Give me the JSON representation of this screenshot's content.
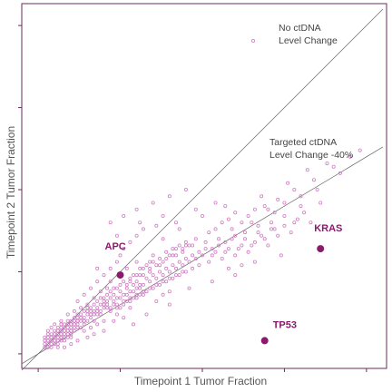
{
  "chart_data": {
    "type": "scatter",
    "xlabel": "Timepoint 1 Tumor Fraction",
    "ylabel": "Timepoint 2 Tumor Fraction",
    "xlim": [
      0,
      1
    ],
    "ylim": [
      0,
      1
    ],
    "tick_labels_shown": false,
    "colors": {
      "frame": "#6b2a5e",
      "points": "#d07fc4",
      "highlight": "#8a1a6b",
      "reference_lines": "#666666"
    },
    "reference_lines": [
      {
        "label_lines": [
          "No ctDNA",
          "Level Change"
        ],
        "slope": 1.0
      },
      {
        "label_lines": [
          "Targeted ctDNA",
          "Level Change -40%"
        ],
        "slope": 0.6
      }
    ],
    "highlighted_points": [
      {
        "label": "APC",
        "x": 0.25,
        "y": 0.24
      },
      {
        "label": "KRAS",
        "x": 0.86,
        "y": 0.32
      },
      {
        "label": "TP53",
        "x": 0.69,
        "y": 0.04
      }
    ],
    "scatter_points": [
      [
        0.02,
        0.03
      ],
      [
        0.03,
        0.02
      ],
      [
        0.04,
        0.05
      ],
      [
        0.05,
        0.03
      ],
      [
        0.06,
        0.06
      ],
      [
        0.07,
        0.04
      ],
      [
        0.03,
        0.06
      ],
      [
        0.05,
        0.07
      ],
      [
        0.08,
        0.06
      ],
      [
        0.09,
        0.07
      ],
      [
        0.04,
        0.02
      ],
      [
        0.06,
        0.03
      ],
      [
        0.07,
        0.08
      ],
      [
        0.08,
        0.05
      ],
      [
        0.1,
        0.08
      ],
      [
        0.11,
        0.07
      ],
      [
        0.09,
        0.1
      ],
      [
        0.12,
        0.09
      ],
      [
        0.13,
        0.08
      ],
      [
        0.1,
        0.05
      ],
      [
        0.14,
        0.11
      ],
      [
        0.15,
        0.1
      ],
      [
        0.12,
        0.12
      ],
      [
        0.16,
        0.12
      ],
      [
        0.17,
        0.1
      ],
      [
        0.13,
        0.14
      ],
      [
        0.18,
        0.13
      ],
      [
        0.19,
        0.12
      ],
      [
        0.15,
        0.15
      ],
      [
        0.2,
        0.14
      ],
      [
        0.11,
        0.13
      ],
      [
        0.14,
        0.07
      ],
      [
        0.16,
        0.08
      ],
      [
        0.18,
        0.09
      ],
      [
        0.2,
        0.1
      ],
      [
        0.21,
        0.16
      ],
      [
        0.22,
        0.13
      ],
      [
        0.17,
        0.17
      ],
      [
        0.23,
        0.15
      ],
      [
        0.24,
        0.17
      ],
      [
        0.19,
        0.19
      ],
      [
        0.25,
        0.14
      ],
      [
        0.26,
        0.18
      ],
      [
        0.21,
        0.2
      ],
      [
        0.27,
        0.16
      ],
      [
        0.28,
        0.19
      ],
      [
        0.22,
        0.22
      ],
      [
        0.29,
        0.17
      ],
      [
        0.3,
        0.2
      ],
      [
        0.24,
        0.12
      ],
      [
        0.26,
        0.11
      ],
      [
        0.28,
        0.14
      ],
      [
        0.31,
        0.18
      ],
      [
        0.32,
        0.21
      ],
      [
        0.33,
        0.19
      ],
      [
        0.34,
        0.22
      ],
      [
        0.35,
        0.2
      ],
      [
        0.3,
        0.24
      ],
      [
        0.36,
        0.23
      ],
      [
        0.37,
        0.21
      ],
      [
        0.38,
        0.24
      ],
      [
        0.39,
        0.22
      ],
      [
        0.4,
        0.25
      ],
      [
        0.32,
        0.26
      ],
      [
        0.41,
        0.23
      ],
      [
        0.42,
        0.26
      ],
      [
        0.34,
        0.28
      ],
      [
        0.43,
        0.24
      ],
      [
        0.44,
        0.27
      ],
      [
        0.45,
        0.25
      ],
      [
        0.36,
        0.16
      ],
      [
        0.38,
        0.18
      ],
      [
        0.4,
        0.19
      ],
      [
        0.46,
        0.28
      ],
      [
        0.47,
        0.26
      ],
      [
        0.48,
        0.29
      ],
      [
        0.49,
        0.27
      ],
      [
        0.5,
        0.3
      ],
      [
        0.52,
        0.28
      ],
      [
        0.54,
        0.31
      ],
      [
        0.56,
        0.29
      ],
      [
        0.58,
        0.32
      ],
      [
        0.6,
        0.3
      ],
      [
        0.62,
        0.33
      ],
      [
        0.64,
        0.31
      ],
      [
        0.66,
        0.34
      ],
      [
        0.68,
        0.36
      ],
      [
        0.7,
        0.33
      ],
      [
        0.55,
        0.35
      ],
      [
        0.6,
        0.36
      ],
      [
        0.45,
        0.33
      ],
      [
        0.48,
        0.35
      ],
      [
        0.42,
        0.32
      ],
      [
        0.52,
        0.37
      ],
      [
        0.65,
        0.4
      ],
      [
        0.72,
        0.38
      ],
      [
        0.75,
        0.42
      ],
      [
        0.78,
        0.4
      ],
      [
        0.58,
        0.26
      ],
      [
        0.62,
        0.27
      ],
      [
        0.35,
        0.3
      ],
      [
        0.3,
        0.28
      ],
      [
        0.27,
        0.26
      ],
      [
        0.25,
        0.3
      ],
      [
        0.38,
        0.35
      ],
      [
        0.43,
        0.38
      ],
      [
        0.5,
        0.42
      ],
      [
        0.57,
        0.45
      ],
      [
        0.68,
        0.48
      ],
      [
        0.76,
        0.52
      ],
      [
        0.82,
        0.56
      ],
      [
        0.88,
        0.58
      ],
      [
        0.95,
        0.6
      ],
      [
        0.98,
        0.62
      ],
      [
        0.74,
        0.3
      ],
      [
        0.8,
        0.45
      ],
      [
        0.85,
        0.5
      ],
      [
        0.92,
        0.55
      ],
      [
        0.33,
        0.12
      ],
      [
        0.29,
        0.09
      ],
      [
        0.4,
        0.15
      ],
      [
        0.46,
        0.2
      ],
      [
        0.53,
        0.22
      ],
      [
        0.6,
        0.24
      ],
      [
        0.66,
        0.28
      ],
      [
        0.23,
        0.1
      ],
      [
        0.2,
        0.07
      ],
      [
        0.17,
        0.06
      ],
      [
        0.15,
        0.05
      ],
      [
        0.12,
        0.04
      ],
      [
        0.1,
        0.03
      ],
      [
        0.08,
        0.02
      ],
      [
        0.06,
        0.02
      ],
      [
        0.09,
        0.12
      ],
      [
        0.12,
        0.16
      ],
      [
        0.14,
        0.18
      ],
      [
        0.16,
        0.2
      ],
      [
        0.18,
        0.22
      ],
      [
        0.2,
        0.24
      ],
      [
        0.22,
        0.26
      ],
      [
        0.24,
        0.28
      ],
      [
        0.26,
        0.32
      ],
      [
        0.28,
        0.34
      ],
      [
        0.3,
        0.36
      ],
      [
        0.32,
        0.38
      ],
      [
        0.22,
        0.4
      ],
      [
        0.26,
        0.42
      ],
      [
        0.3,
        0.44
      ],
      [
        0.35,
        0.46
      ],
      [
        0.4,
        0.48
      ],
      [
        0.45,
        0.5
      ],
      [
        0.38,
        0.42
      ],
      [
        0.62,
        0.4
      ],
      [
        0.7,
        0.44
      ],
      [
        0.73,
        0.47
      ],
      [
        0.78,
        0.5
      ],
      [
        0.84,
        0.53
      ],
      [
        0.9,
        0.57
      ],
      [
        0.18,
        0.26
      ],
      [
        0.24,
        0.36
      ],
      [
        0.31,
        0.4
      ],
      [
        0.36,
        0.39
      ],
      [
        0.42,
        0.4
      ],
      [
        0.48,
        0.44
      ],
      [
        0.54,
        0.46
      ],
      [
        0.28,
        0.22
      ],
      [
        0.31,
        0.24
      ],
      [
        0.34,
        0.25
      ],
      [
        0.37,
        0.27
      ],
      [
        0.39,
        0.29
      ],
      [
        0.41,
        0.3
      ],
      [
        0.44,
        0.31
      ],
      [
        0.47,
        0.33
      ],
      [
        0.51,
        0.34
      ],
      [
        0.53,
        0.32
      ],
      [
        0.57,
        0.34
      ],
      [
        0.59,
        0.38
      ],
      [
        0.63,
        0.37
      ],
      [
        0.67,
        0.39
      ],
      [
        0.71,
        0.4
      ],
      [
        0.07,
        0.1
      ],
      [
        0.05,
        0.09
      ],
      [
        0.04,
        0.08
      ],
      [
        0.03,
        0.04
      ],
      [
        0.02,
        0.05
      ],
      [
        0.02,
        0.02
      ],
      [
        0.03,
        0.03
      ],
      [
        0.04,
        0.04
      ],
      [
        0.05,
        0.05
      ],
      [
        0.06,
        0.04
      ],
      [
        0.07,
        0.06
      ],
      [
        0.08,
        0.08
      ],
      [
        0.09,
        0.05
      ],
      [
        0.1,
        0.1
      ],
      [
        0.11,
        0.09
      ],
      [
        0.12,
        0.11
      ],
      [
        0.13,
        0.1
      ],
      [
        0.14,
        0.13
      ],
      [
        0.15,
        0.12
      ],
      [
        0.16,
        0.14
      ],
      [
        0.17,
        0.13
      ],
      [
        0.18,
        0.16
      ],
      [
        0.19,
        0.15
      ],
      [
        0.2,
        0.17
      ],
      [
        0.21,
        0.18
      ],
      [
        0.22,
        0.19
      ],
      [
        0.23,
        0.18
      ],
      [
        0.24,
        0.2
      ],
      [
        0.25,
        0.21
      ],
      [
        0.26,
        0.22
      ],
      [
        0.27,
        0.21
      ],
      [
        0.28,
        0.23
      ],
      [
        0.29,
        0.24
      ],
      [
        0.3,
        0.22
      ],
      [
        0.31,
        0.26
      ],
      [
        0.32,
        0.24
      ],
      [
        0.33,
        0.27
      ],
      [
        0.34,
        0.26
      ],
      [
        0.35,
        0.28
      ],
      [
        0.36,
        0.27
      ],
      [
        0.37,
        0.29
      ],
      [
        0.38,
        0.28
      ],
      [
        0.39,
        0.31
      ],
      [
        0.4,
        0.3
      ],
      [
        0.41,
        0.32
      ],
      [
        0.42,
        0.3
      ],
      [
        0.43,
        0.33
      ],
      [
        0.44,
        0.32
      ],
      [
        0.45,
        0.34
      ],
      [
        0.46,
        0.33
      ],
      [
        0.06,
        0.08
      ],
      [
        0.07,
        0.07
      ],
      [
        0.08,
        0.09
      ],
      [
        0.09,
        0.08
      ],
      [
        0.1,
        0.09
      ],
      [
        0.11,
        0.11
      ],
      [
        0.12,
        0.1
      ],
      [
        0.13,
        0.12
      ],
      [
        0.14,
        0.09
      ],
      [
        0.15,
        0.13
      ],
      [
        0.16,
        0.11
      ],
      [
        0.17,
        0.15
      ],
      [
        0.18,
        0.12
      ],
      [
        0.19,
        0.17
      ],
      [
        0.2,
        0.15
      ],
      [
        0.21,
        0.14
      ],
      [
        0.22,
        0.17
      ],
      [
        0.23,
        0.2
      ],
      [
        0.24,
        0.15
      ],
      [
        0.25,
        0.19
      ],
      [
        0.26,
        0.16
      ],
      [
        0.27,
        0.2
      ],
      [
        0.28,
        0.17
      ],
      [
        0.29,
        0.21
      ],
      [
        0.3,
        0.18
      ],
      [
        0.31,
        0.21
      ],
      [
        0.32,
        0.19
      ],
      [
        0.33,
        0.23
      ],
      [
        0.34,
        0.2
      ],
      [
        0.35,
        0.24
      ],
      [
        0.36,
        0.21
      ],
      [
        0.37,
        0.25
      ],
      [
        0.38,
        0.22
      ],
      [
        0.39,
        0.26
      ],
      [
        0.4,
        0.23
      ],
      [
        0.41,
        0.27
      ],
      [
        0.42,
        0.24
      ],
      [
        0.43,
        0.28
      ],
      [
        0.44,
        0.25
      ],
      [
        0.45,
        0.29
      ],
      [
        0.47,
        0.3
      ],
      [
        0.49,
        0.31
      ],
      [
        0.51,
        0.32
      ],
      [
        0.53,
        0.3
      ],
      [
        0.55,
        0.33
      ],
      [
        0.57,
        0.31
      ],
      [
        0.59,
        0.35
      ],
      [
        0.61,
        0.32
      ],
      [
        0.63,
        0.35
      ],
      [
        0.65,
        0.33
      ],
      [
        0.67,
        0.37
      ],
      [
        0.69,
        0.35
      ],
      [
        0.71,
        0.38
      ],
      [
        0.73,
        0.36
      ],
      [
        0.75,
        0.39
      ],
      [
        0.77,
        0.37
      ],
      [
        0.79,
        0.41
      ],
      [
        0.81,
        0.43
      ],
      [
        0.83,
        0.4
      ],
      [
        0.86,
        0.46
      ],
      [
        0.54,
        0.38
      ],
      [
        0.56,
        0.4
      ],
      [
        0.58,
        0.41
      ],
      [
        0.6,
        0.43
      ],
      [
        0.64,
        0.42
      ],
      [
        0.66,
        0.44
      ],
      [
        0.69,
        0.45
      ],
      [
        0.72,
        0.43
      ],
      [
        0.75,
        0.46
      ],
      [
        0.8,
        0.48
      ],
      [
        0.03,
        0.05
      ],
      [
        0.05,
        0.04
      ],
      [
        0.04,
        0.06
      ],
      [
        0.06,
        0.05
      ],
      [
        0.07,
        0.09
      ],
      [
        0.08,
        0.07
      ],
      [
        0.09,
        0.09
      ],
      [
        0.1,
        0.07
      ],
      [
        0.11,
        0.1
      ],
      [
        0.12,
        0.08
      ],
      [
        0.13,
        0.11
      ],
      [
        0.14,
        0.1
      ],
      [
        0.15,
        0.14
      ],
      [
        0.16,
        0.13
      ],
      [
        0.17,
        0.12
      ],
      [
        0.18,
        0.14
      ],
      [
        0.19,
        0.13
      ],
      [
        0.2,
        0.16
      ],
      [
        0.21,
        0.15
      ],
      [
        0.22,
        0.14
      ],
      [
        0.23,
        0.16
      ],
      [
        0.24,
        0.14
      ],
      [
        0.25,
        0.17
      ],
      [
        0.26,
        0.15
      ],
      [
        0.27,
        0.18
      ],
      [
        0.28,
        0.16
      ],
      [
        0.29,
        0.19
      ],
      [
        0.3,
        0.17
      ],
      [
        0.31,
        0.2
      ],
      [
        0.32,
        0.18
      ],
      [
        0.02,
        0.04
      ],
      [
        0.03,
        0.07
      ],
      [
        0.04,
        0.03
      ],
      [
        0.05,
        0.06
      ],
      [
        0.06,
        0.07
      ],
      [
        0.07,
        0.05
      ],
      [
        0.08,
        0.04
      ],
      [
        0.09,
        0.06
      ],
      [
        0.1,
        0.06
      ],
      [
        0.11,
        0.08
      ]
    ]
  }
}
